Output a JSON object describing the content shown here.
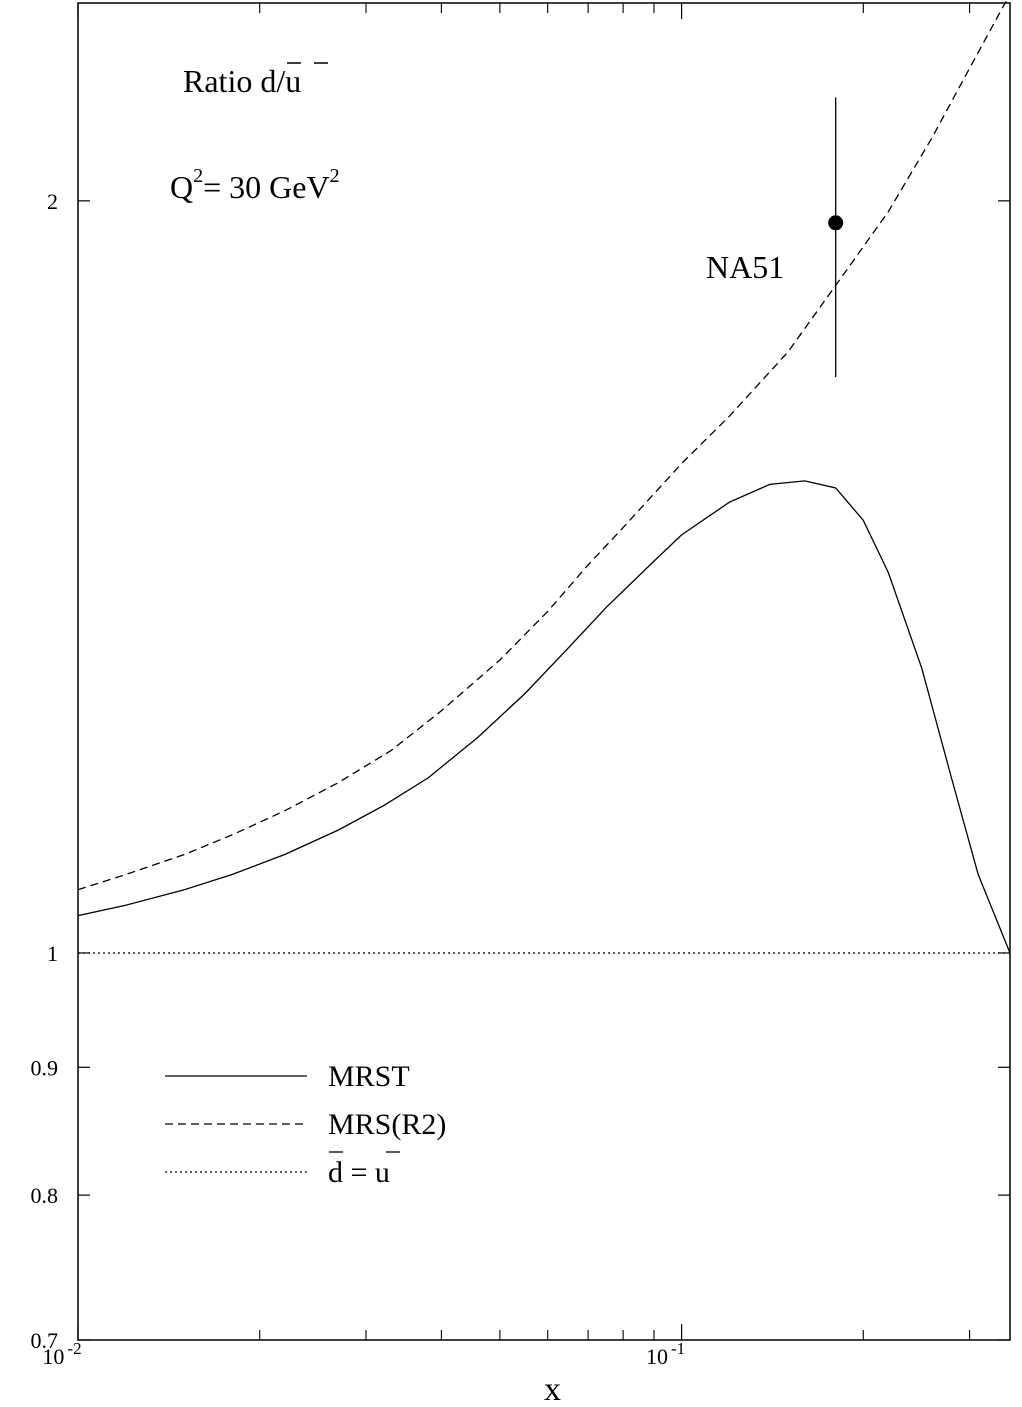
{
  "chart_data": {
    "type": "line",
    "title": "",
    "annotations": {
      "ratio_prefix": "Ratio ",
      "ratio_d": "d",
      "ratio_slash": "/",
      "ratio_u": "u",
      "q2_Q": "Q",
      "q2_exp": "2",
      "q2_mid": "= 30 GeV",
      "q2_exp2": "2",
      "na51_label": "NA51"
    },
    "xlabel": "x",
    "ylabel": "",
    "xscale": "log",
    "yscale": "log",
    "xlim": [
      0.01,
      0.35
    ],
    "ylim": [
      0.7,
      2.4
    ],
    "x_tick_labels": [
      {
        "base": "10",
        "exp": "-2",
        "value": 0.01
      },
      {
        "base": "10",
        "exp": "-1",
        "value": 0.1
      }
    ],
    "x_minor_ticks": [
      0.02,
      0.03,
      0.04,
      0.05,
      0.06,
      0.07,
      0.08,
      0.09,
      0.2,
      0.3
    ],
    "y_ticks": [
      {
        "label": "0.7",
        "value": 0.7
      },
      {
        "label": "0.8",
        "value": 0.8
      },
      {
        "label": "0.9",
        "value": 0.9
      },
      {
        "label": "1",
        "value": 1.0
      },
      {
        "label": "2",
        "value": 2.0
      }
    ],
    "series": [
      {
        "name": "MRST",
        "style": "solid",
        "x": [
          0.01,
          0.012,
          0.015,
          0.018,
          0.022,
          0.027,
          0.032,
          0.038,
          0.046,
          0.055,
          0.065,
          0.075,
          0.09,
          0.1,
          0.12,
          0.14,
          0.16,
          0.18,
          0.2,
          0.22,
          0.25,
          0.28,
          0.31,
          0.35
        ],
        "y": [
          1.035,
          1.045,
          1.06,
          1.075,
          1.095,
          1.12,
          1.145,
          1.175,
          1.22,
          1.27,
          1.325,
          1.375,
          1.435,
          1.47,
          1.515,
          1.54,
          1.545,
          1.535,
          1.49,
          1.42,
          1.3,
          1.175,
          1.075,
          1.0
        ]
      },
      {
        "name": "MRS(R2)",
        "style": "dashed",
        "x": [
          0.01,
          0.012,
          0.015,
          0.018,
          0.022,
          0.027,
          0.033,
          0.04,
          0.05,
          0.06,
          0.07,
          0.08,
          0.1,
          0.12,
          0.15,
          0.18,
          0.22,
          0.26,
          0.3,
          0.35
        ],
        "y": [
          1.06,
          1.075,
          1.095,
          1.115,
          1.14,
          1.17,
          1.205,
          1.25,
          1.31,
          1.37,
          1.43,
          1.48,
          1.57,
          1.64,
          1.74,
          1.85,
          1.98,
          2.12,
          2.26,
          2.42
        ]
      },
      {
        "name": "d = u",
        "style": "dotted",
        "x": [
          0.01,
          0.35
        ],
        "y": [
          1.0,
          1.0
        ]
      }
    ],
    "points": [
      {
        "name": "NA51",
        "x": 0.18,
        "y": 1.96,
        "yerr_low": 1.7,
        "yerr_high": 2.2
      }
    ],
    "legend": {
      "placement": "lower-left",
      "entries": [
        {
          "label": "MRST",
          "style": "solid"
        },
        {
          "label": "MRS(R2)",
          "style": "dashed"
        },
        {
          "label_d": "d",
          "label_eq": " = ",
          "label_u": "u",
          "style": "dotted"
        }
      ]
    },
    "grid": false
  }
}
